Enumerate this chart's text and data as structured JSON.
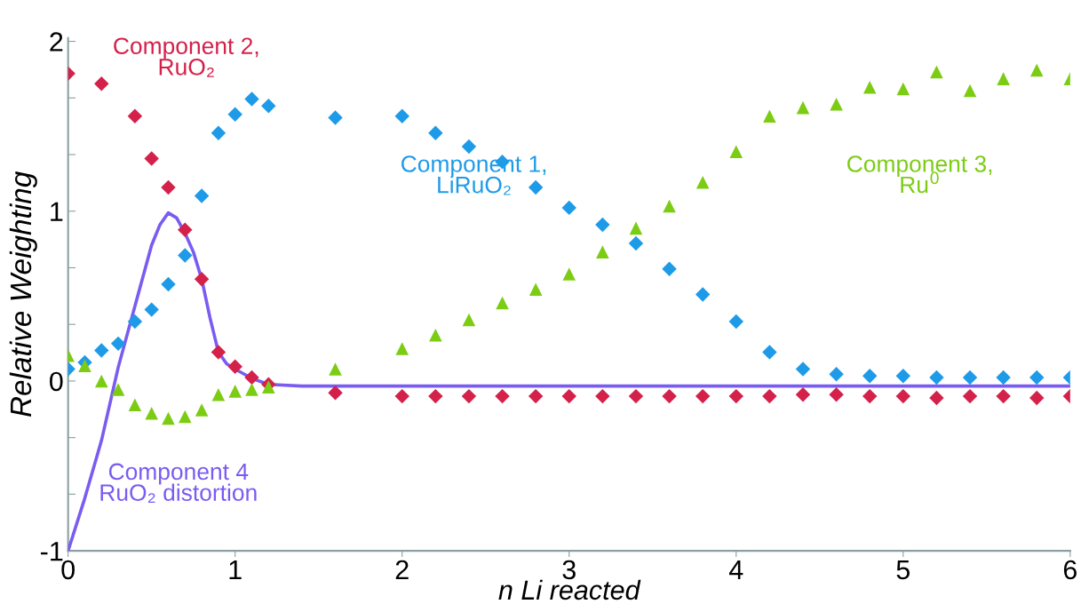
{
  "chart_data": {
    "type": "scatter",
    "xlabel": "n Li reacted",
    "ylabel": "Relative Weighting",
    "xlim": [
      0,
      6
    ],
    "ylim": [
      -1,
      2.02
    ],
    "xticks": [
      0,
      1,
      2,
      3,
      4,
      5,
      6
    ],
    "yticks": [
      -1,
      {
        "value": -0.6667,
        "label": null
      },
      {
        "value": -0.3333,
        "label": null
      },
      0,
      {
        "value": 0.3333,
        "label": null
      },
      {
        "value": 0.6667,
        "label": null
      },
      1,
      {
        "value": 1.3333,
        "label": null
      },
      {
        "value": 1.6667,
        "label": null
      },
      2
    ],
    "grid": false,
    "legend": false,
    "series": [
      {
        "name": "Component 1,\nLiRuO₂",
        "marker": "diamond",
        "color": "#1e9be8",
        "x": [
          0,
          0.1,
          0.2,
          0.3,
          0.4,
          0.5,
          0.6,
          0.7,
          0.8,
          0.9,
          1.0,
          1.1,
          1.2,
          1.6,
          2.0,
          2.2,
          2.4,
          2.6,
          2.8,
          3.0,
          3.2,
          3.4,
          3.6,
          3.8,
          4.0,
          4.2,
          4.4,
          4.6,
          4.8,
          5.0,
          5.2,
          5.4,
          5.6,
          5.8,
          6.0
        ],
        "values": [
          0.07,
          0.11,
          0.18,
          0.22,
          0.35,
          0.42,
          0.57,
          0.74,
          1.09,
          1.46,
          1.57,
          1.66,
          1.62,
          1.55,
          1.56,
          1.46,
          1.38,
          1.29,
          1.14,
          1.02,
          0.92,
          0.81,
          0.66,
          0.51,
          0.35,
          0.17,
          0.07,
          0.04,
          0.03,
          0.03,
          0.02,
          0.02,
          0.02,
          0.02,
          0.02
        ]
      },
      {
        "name": "Component 2,\nRuO₂",
        "marker": "diamond",
        "color": "#d4214a",
        "x": [
          0,
          0.2,
          0.4,
          0.5,
          0.6,
          0.7,
          0.8,
          0.9,
          1.0,
          1.1,
          1.2,
          1.6,
          2.0,
          2.2,
          2.4,
          2.6,
          2.8,
          3.0,
          3.2,
          3.4,
          3.6,
          3.8,
          4.0,
          4.2,
          4.4,
          4.6,
          4.8,
          5.0,
          5.2,
          5.4,
          5.6,
          5.8,
          6.0
        ],
        "values": [
          1.81,
          1.75,
          1.56,
          1.31,
          1.14,
          0.89,
          0.6,
          0.17,
          0.085,
          0.02,
          -0.02,
          -0.07,
          -0.09,
          -0.09,
          -0.09,
          -0.09,
          -0.09,
          -0.09,
          -0.09,
          -0.09,
          -0.09,
          -0.09,
          -0.09,
          -0.09,
          -0.08,
          -0.08,
          -0.09,
          -0.09,
          -0.1,
          -0.09,
          -0.09,
          -0.1,
          -0.09
        ]
      },
      {
        "name": "Component 3,\nRu$^{0}$",
        "marker": "triangle",
        "color": "#7ccc14",
        "x": [
          0,
          0.1,
          0.2,
          0.3,
          0.4,
          0.5,
          0.6,
          0.7,
          0.8,
          0.9,
          1.0,
          1.1,
          1.2,
          1.6,
          2.0,
          2.2,
          2.4,
          2.6,
          2.8,
          3.0,
          3.2,
          3.4,
          3.6,
          3.8,
          4.0,
          4.2,
          4.4,
          4.6,
          4.8,
          5.0,
          5.2,
          5.4,
          5.6,
          5.8,
          6.0
        ],
        "values": [
          0.15,
          0.09,
          0.0,
          -0.05,
          -0.14,
          -0.19,
          -0.22,
          -0.21,
          -0.17,
          -0.08,
          -0.06,
          -0.05,
          -0.035,
          0.07,
          0.19,
          0.27,
          0.36,
          0.46,
          0.54,
          0.63,
          0.76,
          0.9,
          1.03,
          1.17,
          1.35,
          1.56,
          1.61,
          1.63,
          1.73,
          1.72,
          1.82,
          1.71,
          1.78,
          1.83,
          1.78
        ]
      },
      {
        "name": "Component 4\nRuO₂ distortion",
        "type": "line",
        "marker": "none",
        "line_style": "solid",
        "color": "#7a5cf0",
        "x": [
          0,
          0.1,
          0.2,
          0.3,
          0.4,
          0.5,
          0.55,
          0.6,
          0.65,
          0.7,
          0.75,
          0.8,
          0.85,
          0.9,
          0.95,
          1.0,
          1.1,
          1.2,
          1.4,
          6.0
        ],
        "values": [
          -1,
          -0.69,
          -0.35,
          0.08,
          0.44,
          0.8,
          0.92,
          0.99,
          0.96,
          0.87,
          0.76,
          0.6,
          0.37,
          0.17,
          0.1,
          0.07,
          0.015,
          -0.02,
          -0.03,
          -0.03
        ]
      }
    ]
  }
}
